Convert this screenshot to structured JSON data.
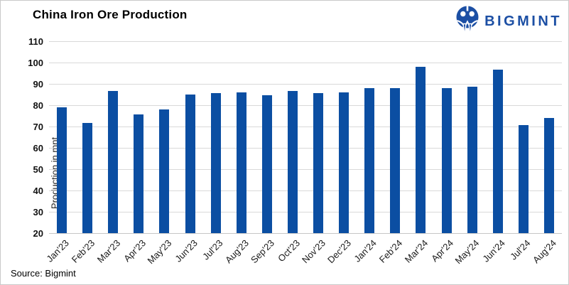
{
  "header": {
    "title": "China Iron Ore Production",
    "logo_text": "BIGMINT"
  },
  "footer": {
    "source": "Source: Bigmint"
  },
  "colors": {
    "bar": "#0b4ea2",
    "logo": "#1c4fa4",
    "grid": "#d9d9d9"
  },
  "chart_data": {
    "type": "bar",
    "title": "China Iron Ore Production",
    "xlabel": "",
    "ylabel": "Production in mnt",
    "ylim": [
      20,
      110
    ],
    "ytick_step": 10,
    "grid": true,
    "legend": false,
    "categories": [
      "Jan'23",
      "Feb'23",
      "Mar'23",
      "Apr'23",
      "May'23",
      "Jun'23",
      "Jul'23",
      "Aug'23",
      "Sep'23",
      "Oct'23",
      "Nov'23",
      "Dec'23",
      "Jan'24",
      "Feb'24",
      "Mar'24",
      "Apr'24",
      "May'24",
      "Jun'24",
      "Jul'24",
      "Aug'24"
    ],
    "values": [
      79,
      71.5,
      86.5,
      75.5,
      78,
      85,
      85.5,
      86,
      84.5,
      86.5,
      85.5,
      86,
      88,
      88,
      98,
      88,
      88.5,
      96.5,
      70.5,
      74
    ]
  }
}
